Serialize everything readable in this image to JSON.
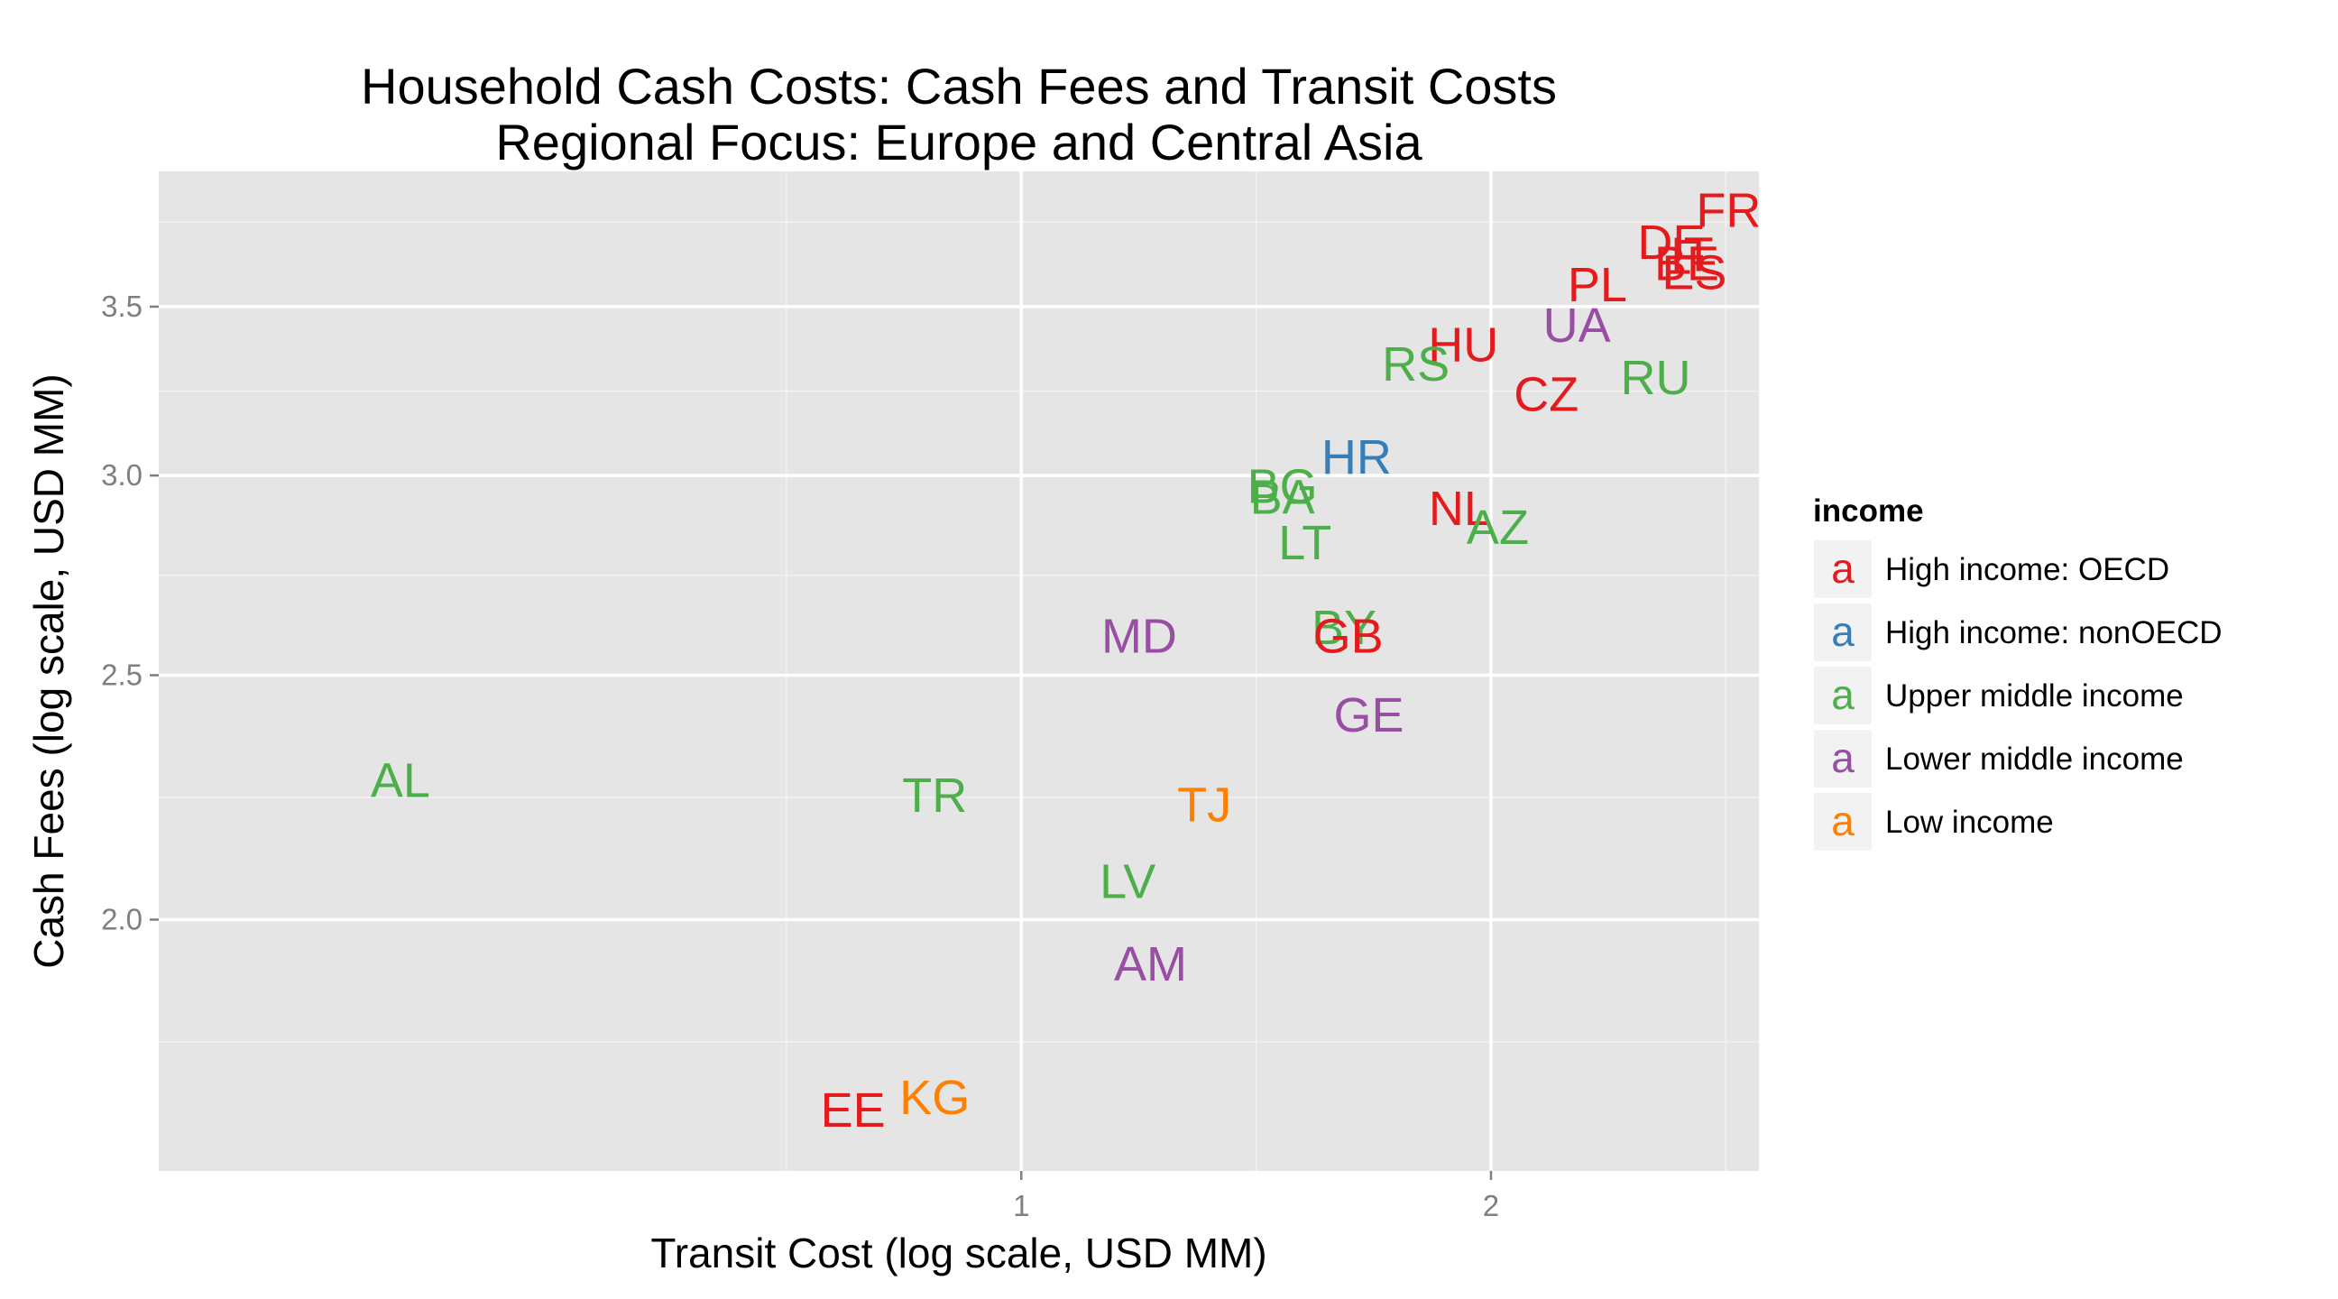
{
  "chart_data": {
    "type": "scatter",
    "title": [
      "Household Cash Costs: Cash Fees and Transit Costs",
      "Regional Focus: Europe and Central Asia"
    ],
    "xlabel": "Transit Cost (log scale, USD MM)",
    "ylabel": "Cash Fees (log scale, USD MM)",
    "xlim": [
      0.28,
      2.97
    ],
    "ylim": [
      1.59,
      3.96
    ],
    "x_ticks": [
      1,
      2
    ],
    "y_ticks": [
      2.0,
      2.5,
      3.0,
      3.5
    ],
    "x_tick_labels": [
      "1",
      "2"
    ],
    "y_tick_labels": [
      "2.0",
      "2.5",
      "3.0",
      "3.5"
    ],
    "grid": true,
    "legend": {
      "title": "income",
      "position": "right",
      "key_glyph": "a",
      "entries": [
        {
          "name": "High income: OECD",
          "color": "#E41A1C"
        },
        {
          "name": "High income: nonOECD",
          "color": "#377EB8"
        },
        {
          "name": "Upper middle income",
          "color": "#4DAF4A"
        },
        {
          "name": "Lower middle income",
          "color": "#984EA3"
        },
        {
          "name": "Low income",
          "color": "#FF7F00"
        }
      ]
    },
    "points": [
      {
        "label": "FR",
        "x": 2.84,
        "y": 3.82,
        "group": 0
      },
      {
        "label": "DE",
        "x": 2.61,
        "y": 3.71,
        "group": 0
      },
      {
        "label": "BE",
        "x": 2.67,
        "y": 3.64,
        "group": 0
      },
      {
        "label": "IT",
        "x": 2.69,
        "y": 3.67,
        "group": 0
      },
      {
        "label": "ES",
        "x": 2.7,
        "y": 3.61,
        "group": 0
      },
      {
        "label": "PL",
        "x": 2.34,
        "y": 3.57,
        "group": 0
      },
      {
        "label": "UA",
        "x": 2.27,
        "y": 3.44,
        "group": 3
      },
      {
        "label": "HU",
        "x": 1.92,
        "y": 3.38,
        "group": 0
      },
      {
        "label": "RS",
        "x": 1.79,
        "y": 3.32,
        "group": 2
      },
      {
        "label": "RU",
        "x": 2.55,
        "y": 3.28,
        "group": 2
      },
      {
        "label": "CZ",
        "x": 2.17,
        "y": 3.23,
        "group": 0
      },
      {
        "label": "HR",
        "x": 1.64,
        "y": 3.05,
        "group": 1
      },
      {
        "label": "BG",
        "x": 1.47,
        "y": 2.97,
        "group": 2
      },
      {
        "label": "BA",
        "x": 1.47,
        "y": 2.94,
        "group": 2
      },
      {
        "label": "NL",
        "x": 1.91,
        "y": 2.91,
        "group": 0
      },
      {
        "label": "AZ",
        "x": 2.02,
        "y": 2.86,
        "group": 2
      },
      {
        "label": "LT",
        "x": 1.52,
        "y": 2.82,
        "group": 2
      },
      {
        "label": "MD",
        "x": 1.19,
        "y": 2.59,
        "group": 3
      },
      {
        "label": "BY",
        "x": 1.61,
        "y": 2.61,
        "group": 2
      },
      {
        "label": "GB",
        "x": 1.62,
        "y": 2.59,
        "group": 0
      },
      {
        "label": "GE",
        "x": 1.67,
        "y": 2.41,
        "group": 3
      },
      {
        "label": "AL",
        "x": 0.4,
        "y": 2.27,
        "group": 2
      },
      {
        "label": "TR",
        "x": 0.88,
        "y": 2.24,
        "group": 2
      },
      {
        "label": "TJ",
        "x": 1.31,
        "y": 2.22,
        "group": 4
      },
      {
        "label": "LV",
        "x": 1.17,
        "y": 2.07,
        "group": 2
      },
      {
        "label": "AM",
        "x": 1.21,
        "y": 1.92,
        "group": 3
      },
      {
        "label": "EE",
        "x": 0.78,
        "y": 1.68,
        "group": 0
      },
      {
        "label": "KG",
        "x": 0.88,
        "y": 1.7,
        "group": 4
      }
    ]
  }
}
